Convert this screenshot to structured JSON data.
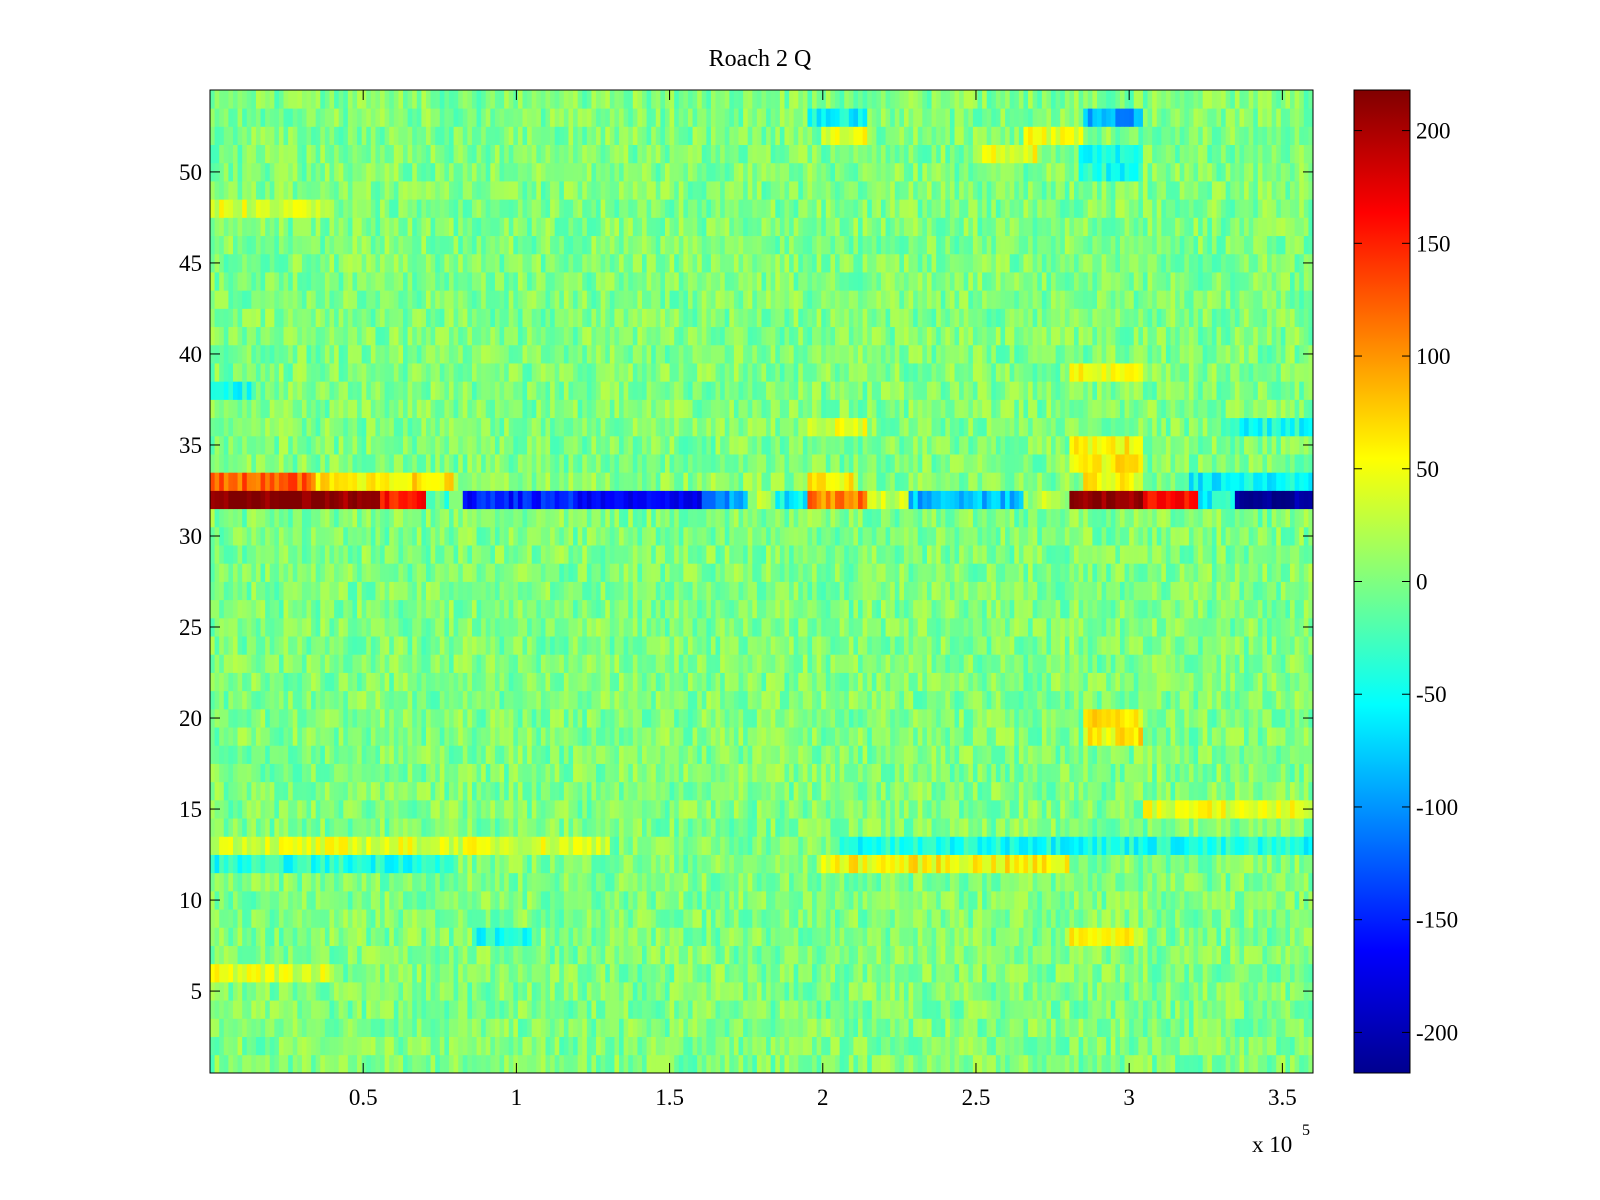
{
  "chart_data": {
    "type": "heatmap",
    "title": "Roach 2 Q",
    "xlabel": "",
    "ylabel": "",
    "x_exponent_label": "x 10",
    "x_exponent_power": "5",
    "xlim": [
      0,
      360000
    ],
    "ylim": [
      0.5,
      54.5
    ],
    "x_ticks": [
      50000,
      100000,
      150000,
      200000,
      250000,
      300000,
      350000
    ],
    "x_tick_labels": [
      "0.5",
      "1",
      "1.5",
      "2",
      "2.5",
      "3",
      "3.5"
    ],
    "y_ticks": [
      5,
      10,
      15,
      20,
      25,
      30,
      35,
      40,
      45,
      50
    ],
    "y_tick_labels": [
      "5",
      "10",
      "15",
      "20",
      "25",
      "30",
      "35",
      "40",
      "45",
      "50"
    ],
    "rows": 54,
    "colormap": "jet",
    "colorbar": {
      "limits": [
        -218,
        218
      ],
      "ticks": [
        -200,
        -150,
        -100,
        -50,
        0,
        50,
        100,
        150,
        200
      ],
      "tick_labels": [
        "-200",
        "-150",
        "-100",
        "-50",
        "0",
        "50",
        "100",
        "150",
        "200"
      ]
    },
    "baseline_noise": {
      "mean": 0,
      "amplitude": 25
    },
    "segments": [
      {
        "row": 32,
        "x_start": 0,
        "x_end": 40000,
        "value": 215
      },
      {
        "row": 32,
        "x_start": 40000,
        "x_end": 55000,
        "value": 205
      },
      {
        "row": 32,
        "x_start": 55000,
        "x_end": 70000,
        "value": 150
      },
      {
        "row": 32,
        "x_start": 70000,
        "x_end": 82000,
        "value": -20
      },
      {
        "row": 32,
        "x_start": 82000,
        "x_end": 120000,
        "value": -150
      },
      {
        "row": 32,
        "x_start": 120000,
        "x_end": 160000,
        "value": -170
      },
      {
        "row": 32,
        "x_start": 160000,
        "x_end": 175000,
        "value": -100
      },
      {
        "row": 32,
        "x_start": 175000,
        "x_end": 185000,
        "value": 20
      },
      {
        "row": 32,
        "x_start": 185000,
        "x_end": 195000,
        "value": -60
      },
      {
        "row": 32,
        "x_start": 195000,
        "x_end": 215000,
        "value": 110
      },
      {
        "row": 32,
        "x_start": 215000,
        "x_end": 228000,
        "value": 30
      },
      {
        "row": 32,
        "x_start": 228000,
        "x_end": 265000,
        "value": -85
      },
      {
        "row": 32,
        "x_start": 265000,
        "x_end": 280000,
        "value": 20
      },
      {
        "row": 32,
        "x_start": 280000,
        "x_end": 305000,
        "value": 210
      },
      {
        "row": 32,
        "x_start": 305000,
        "x_end": 322000,
        "value": 160
      },
      {
        "row": 32,
        "x_start": 322000,
        "x_end": 335000,
        "value": -50
      },
      {
        "row": 32,
        "x_start": 335000,
        "x_end": 360000,
        "value": -205
      },
      {
        "row": 33,
        "x_start": 0,
        "x_end": 35000,
        "value": 120
      },
      {
        "row": 33,
        "x_start": 35000,
        "x_end": 80000,
        "value": 65
      },
      {
        "row": 33,
        "x_start": 80000,
        "x_end": 195000,
        "value": 5
      },
      {
        "row": 33,
        "x_start": 195000,
        "x_end": 212000,
        "value": 55
      },
      {
        "row": 33,
        "x_start": 285000,
        "x_end": 305000,
        "value": 55
      },
      {
        "row": 33,
        "x_start": 320000,
        "x_end": 360000,
        "value": -55
      },
      {
        "row": 12,
        "x_start": 0,
        "x_end": 80000,
        "value": -40
      },
      {
        "row": 12,
        "x_start": 200000,
        "x_end": 280000,
        "value": 55
      },
      {
        "row": 12,
        "x_start": 280000,
        "x_end": 360000,
        "value": 0
      },
      {
        "row": 13,
        "x_start": 0,
        "x_end": 130000,
        "value": 40
      },
      {
        "row": 13,
        "x_start": 205000,
        "x_end": 360000,
        "value": -45
      },
      {
        "row": 15,
        "x_start": 305000,
        "x_end": 360000,
        "value": 45
      },
      {
        "row": 53,
        "x_start": 195000,
        "x_end": 215000,
        "value": -55
      },
      {
        "row": 53,
        "x_start": 285000,
        "x_end": 305000,
        "value": -90
      },
      {
        "row": 52,
        "x_start": 200000,
        "x_end": 215000,
        "value": 50
      },
      {
        "row": 52,
        "x_start": 265000,
        "x_end": 285000,
        "value": 45
      },
      {
        "row": 51,
        "x_start": 250000,
        "x_end": 270000,
        "value": 45
      },
      {
        "row": 51,
        "x_start": 283000,
        "x_end": 305000,
        "value": -50
      },
      {
        "row": 50,
        "x_start": 283000,
        "x_end": 305000,
        "value": -45
      },
      {
        "row": 48,
        "x_start": 0,
        "x_end": 40000,
        "value": 40
      },
      {
        "row": 39,
        "x_start": 280000,
        "x_end": 305000,
        "value": 45
      },
      {
        "row": 38,
        "x_start": 0,
        "x_end": 15000,
        "value": -45
      },
      {
        "row": 36,
        "x_start": 195000,
        "x_end": 215000,
        "value": 40
      },
      {
        "row": 35,
        "x_start": 280000,
        "x_end": 305000,
        "value": 55
      },
      {
        "row": 34,
        "x_start": 280000,
        "x_end": 305000,
        "value": 60
      },
      {
        "row": 36,
        "x_start": 330000,
        "x_end": 360000,
        "value": -45
      },
      {
        "row": 20,
        "x_start": 285000,
        "x_end": 305000,
        "value": 60
      },
      {
        "row": 19,
        "x_start": 285000,
        "x_end": 305000,
        "value": 60
      },
      {
        "row": 8,
        "x_start": 280000,
        "x_end": 305000,
        "value": 50
      },
      {
        "row": 8,
        "x_start": 85000,
        "x_end": 105000,
        "value": -45
      },
      {
        "row": 6,
        "x_start": 0,
        "x_end": 40000,
        "value": 40
      }
    ]
  }
}
